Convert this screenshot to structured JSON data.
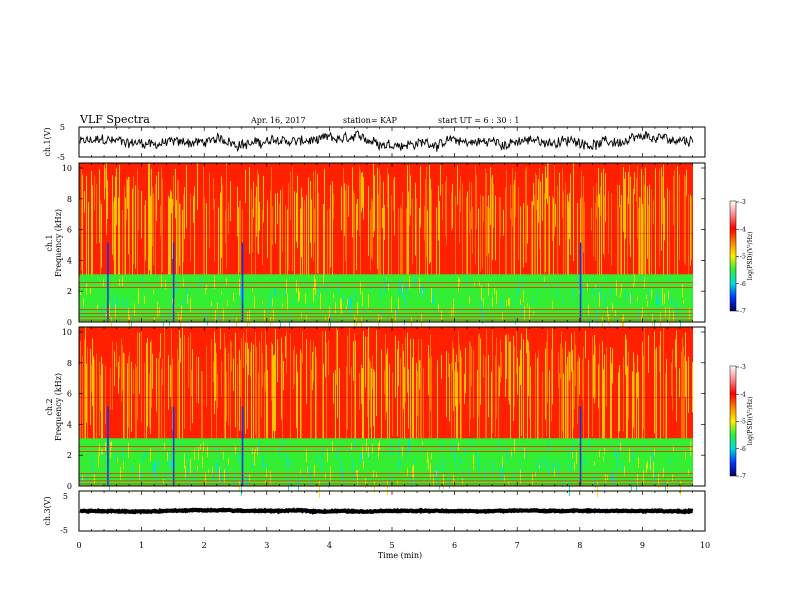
{
  "header": {
    "title": "VLF Spectra",
    "date": "Apr. 16, 2017",
    "station": "station= KAP",
    "start": "start  UT =   6  : 30 : 1"
  },
  "colors": {
    "red": "#ff2000",
    "orange": "#ff8000",
    "yellow": "#ffe000",
    "green": "#33ee33",
    "cyan": "#00e0e0",
    "blue": "#0033ff",
    "navy": "#000066"
  },
  "chart_data": [
    {
      "type": "line",
      "id": "ch1-waveform",
      "ylabel": "ch.1(V)",
      "ylim": [
        -5,
        5
      ],
      "yticks": [
        "5",
        "-5"
      ],
      "xlim": [
        0,
        10
      ],
      "mean": 0,
      "amplitude": 2.2
    },
    {
      "type": "heatmap",
      "id": "ch1-spectrogram",
      "ylabel_top": "ch.1",
      "ylabel": "Frequency (kHz)",
      "ylim": [
        0,
        10
      ],
      "yticks": [
        "0",
        "2",
        "4",
        "6",
        "8",
        "10"
      ],
      "xlim": [
        0,
        10
      ],
      "green_band_top_khz": 3.0,
      "colorbar": {
        "label": "log(PSD)(V²/Hz)",
        "min": -7,
        "max": -3,
        "ticks": [
          "-3",
          "-4",
          "-5",
          "-6",
          "-7"
        ]
      }
    },
    {
      "type": "heatmap",
      "id": "ch2-spectrogram",
      "ylabel_top": "ch.2",
      "ylabel": "Frequency (kHz)",
      "ylim": [
        0,
        10
      ],
      "yticks": [
        "0",
        "2",
        "4",
        "6",
        "8",
        "10"
      ],
      "xlim": [
        0,
        10
      ],
      "green_band_top_khz": 3.0,
      "colorbar": {
        "label": "log(PSD)(V²/Hz)",
        "min": -7,
        "max": -3,
        "ticks": [
          "-3",
          "-4",
          "-5",
          "-6",
          "-7"
        ]
      }
    },
    {
      "type": "line",
      "id": "ch3-waveform",
      "ylabel": "ch.3(V)",
      "ylim": [
        -5,
        5
      ],
      "yticks": [
        "5",
        "-5"
      ],
      "xlim": [
        0,
        10
      ],
      "mean": 0,
      "amplitude": 0.25
    }
  ],
  "xaxis": {
    "label": "Time (min)",
    "ticks": [
      "0",
      "1",
      "2",
      "3",
      "4",
      "5",
      "6",
      "7",
      "8",
      "9",
      "10"
    ]
  }
}
